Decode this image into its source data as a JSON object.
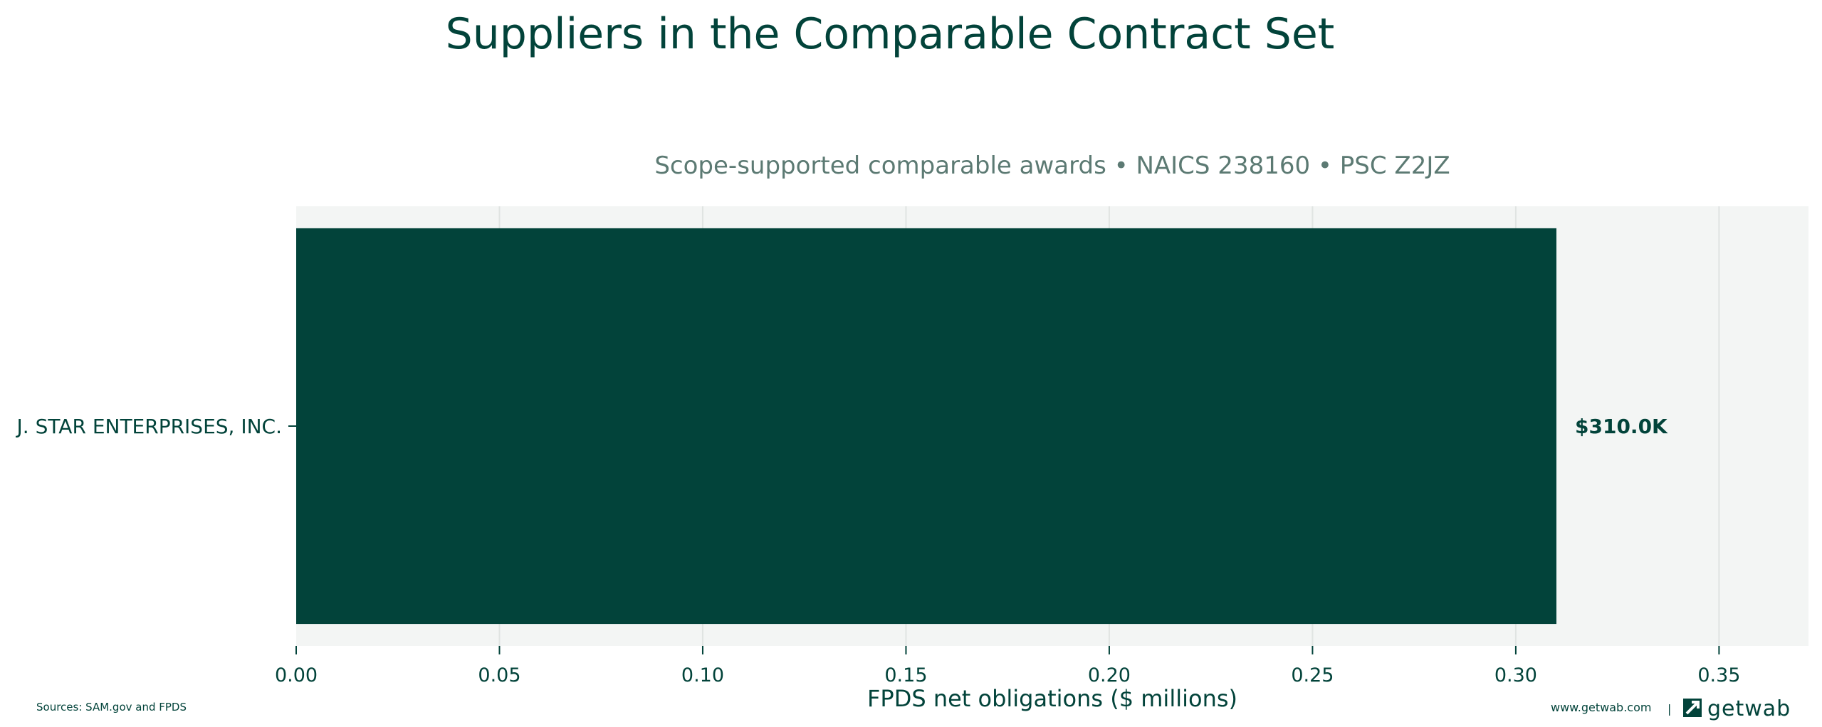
{
  "colors": {
    "primary": "#02433a",
    "subtitle": "#5c7a73",
    "plot_bg": "#f3f5f4",
    "grid": "#e0e4e2"
  },
  "chart_data": {
    "type": "bar",
    "orientation": "horizontal",
    "title": "Suppliers in the Comparable Contract Set",
    "subtitle": "Scope-supported comparable awards • NAICS 238160 • PSC Z2JZ",
    "xlabel": "FPDS net obligations ($ millions)",
    "ylabel": "",
    "categories": [
      "J. STAR ENTERPRISES, INC."
    ],
    "values": [
      0.31
    ],
    "data_labels": [
      "$310.0K"
    ],
    "xlim": [
      0,
      0.372
    ],
    "xticks": [
      0.0,
      0.05,
      0.1,
      0.15,
      0.2,
      0.25,
      0.3,
      0.35
    ],
    "xtick_labels": [
      "0.00",
      "0.05",
      "0.10",
      "0.15",
      "0.20",
      "0.25",
      "0.30",
      "0.35"
    ],
    "grid": "vertical",
    "legend": "none"
  },
  "footer": {
    "sources": "Sources: SAM.gov and FPDS",
    "website": "www.getwab.com",
    "separator": "|",
    "brand_name": "getwab",
    "brand_icon": "getwab-logo-icon"
  }
}
